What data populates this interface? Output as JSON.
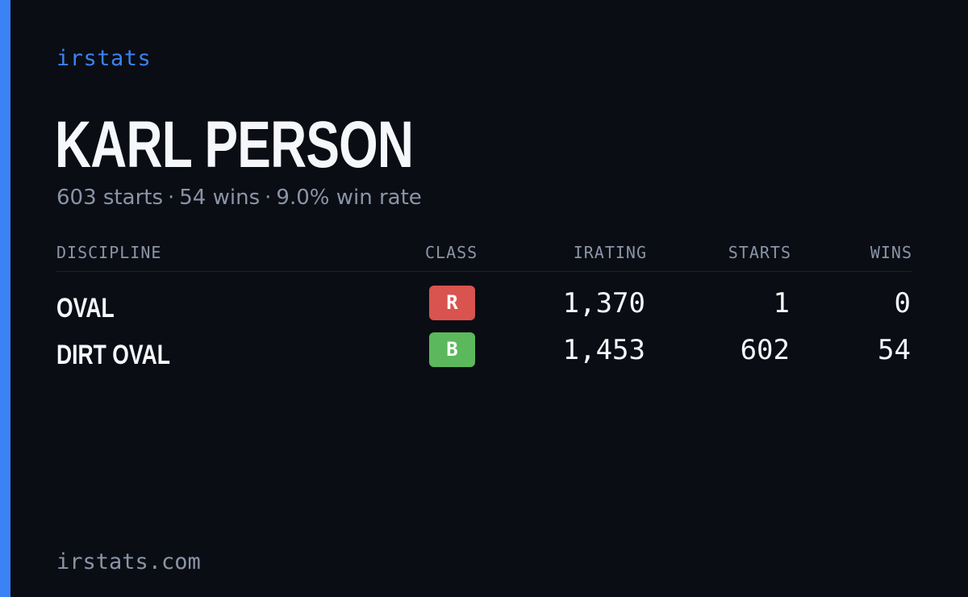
{
  "brand": "irstats",
  "driver": {
    "name": "KARL PERSON",
    "starts_text": "603 starts",
    "wins_text": "54 wins",
    "win_rate_text": "9.0% win rate",
    "separator": "·"
  },
  "table": {
    "headers": {
      "discipline": "DISCIPLINE",
      "class": "CLASS",
      "irating": "IRATING",
      "starts": "STARTS",
      "wins": "WINS"
    },
    "rows": [
      {
        "discipline": "OVAL",
        "class": "R",
        "class_color": "#d9534f",
        "irating": "1,370",
        "starts": "1",
        "wins": "0"
      },
      {
        "discipline": "DIRT OVAL",
        "class": "B",
        "class_color": "#5cb85c",
        "irating": "1,453",
        "starts": "602",
        "wins": "54"
      }
    ]
  },
  "footer": "irstats.com",
  "colors": {
    "background": "#0a0d14",
    "accent": "#3b82f6",
    "muted_text": "#8b94a6",
    "primary_text": "#f6f7fb"
  }
}
